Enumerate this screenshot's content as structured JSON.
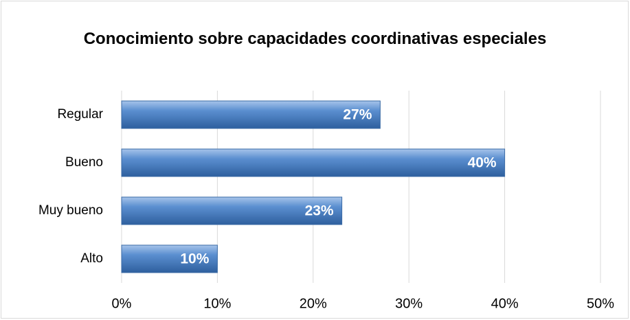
{
  "chart_data": {
    "type": "bar",
    "orientation": "horizontal",
    "title": "Conocimiento sobre capacidades coordinativas especiales",
    "categories": [
      "Regular",
      "Bueno",
      "Muy bueno",
      "Alto"
    ],
    "values": [
      27,
      40,
      23,
      10
    ],
    "value_labels": [
      "27%",
      "40%",
      "23%",
      "10%"
    ],
    "color": "#4a7ebb",
    "xlim": [
      0,
      50
    ],
    "xticks": [
      {
        "value": 0,
        "label": "0%"
      },
      {
        "value": 10,
        "label": "10%"
      },
      {
        "value": 20,
        "label": "20%"
      },
      {
        "value": 30,
        "label": "30%"
      },
      {
        "value": 40,
        "label": "40%"
      },
      {
        "value": 50,
        "label": "50%"
      }
    ],
    "grid": true
  }
}
